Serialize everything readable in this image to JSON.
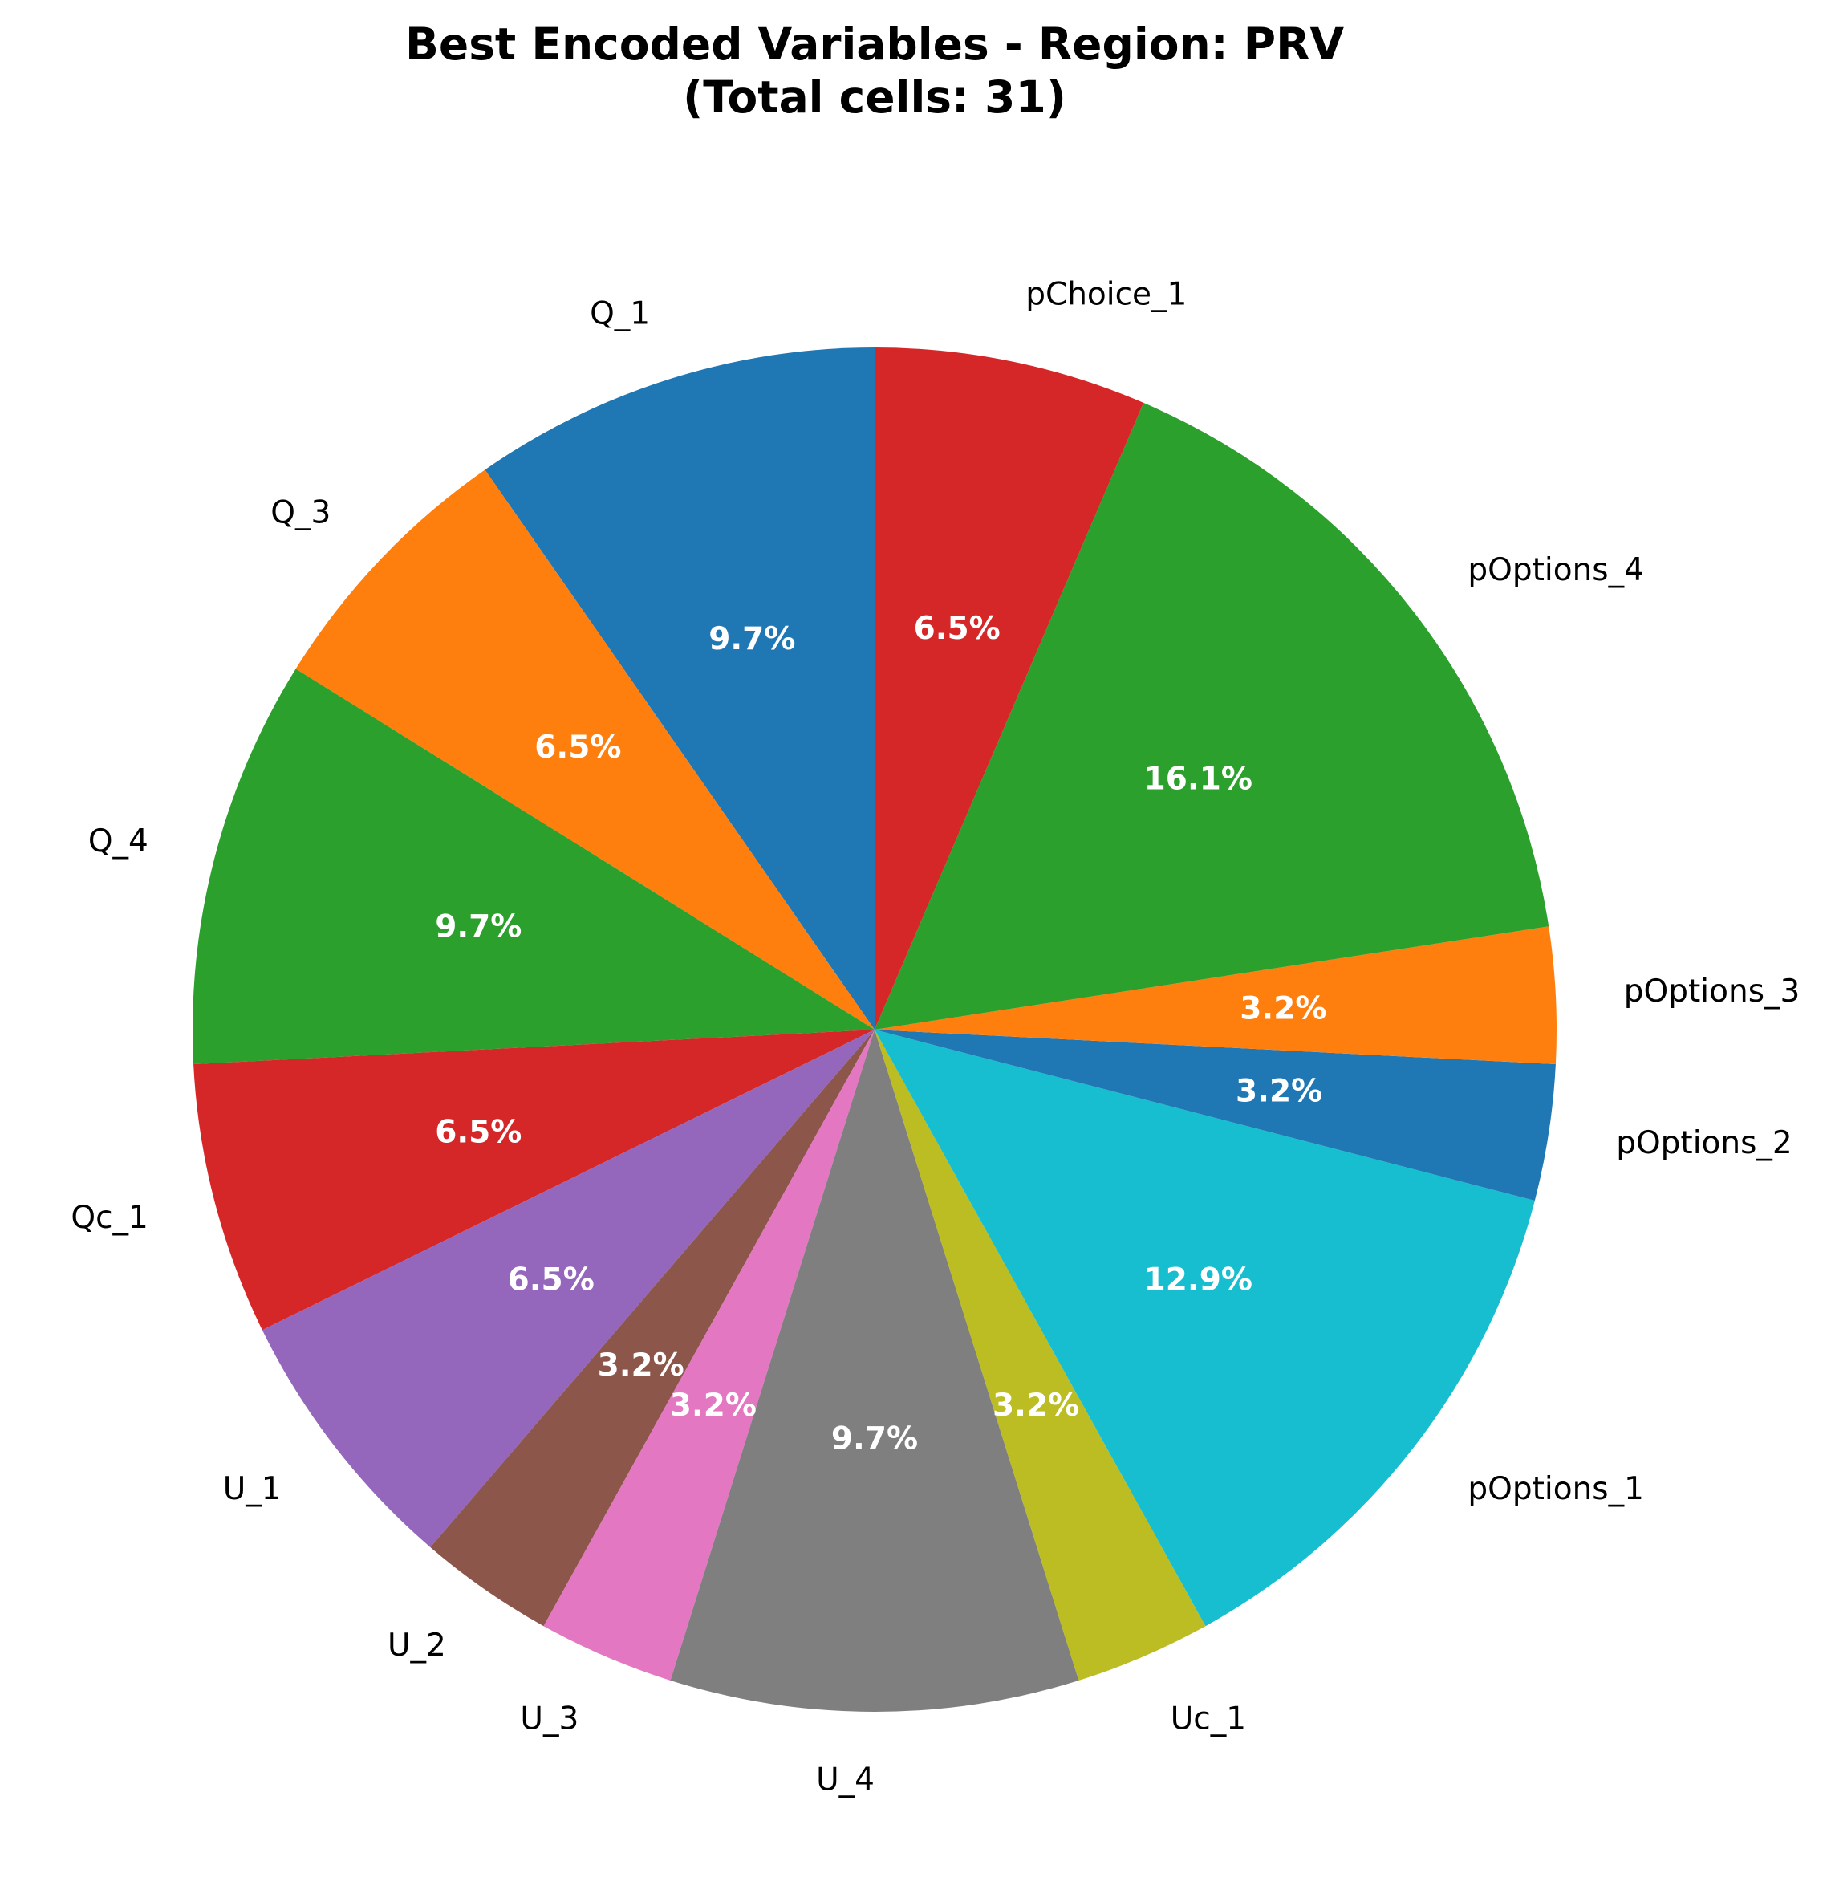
{
  "chart_data": {
    "type": "pie",
    "title": [
      "Best Encoded Variables - Region: PRV",
      "(Total cells: 31)"
    ],
    "counterclockwise": true,
    "start_angle_deg": 90,
    "slices": [
      {
        "label": "Q_1",
        "value": 3,
        "pct_label": "9.7%",
        "color": "#1f77b4"
      },
      {
        "label": "Q_3",
        "value": 2,
        "pct_label": "6.5%",
        "color": "#ff7f0e"
      },
      {
        "label": "Q_4",
        "value": 3,
        "pct_label": "9.7%",
        "color": "#2ca02c"
      },
      {
        "label": "Qc_1",
        "value": 2,
        "pct_label": "6.5%",
        "color": "#d62728"
      },
      {
        "label": "U_1",
        "value": 2,
        "pct_label": "6.5%",
        "color": "#9467bd"
      },
      {
        "label": "U_2",
        "value": 1,
        "pct_label": "3.2%",
        "color": "#8c564b"
      },
      {
        "label": "U_3",
        "value": 1,
        "pct_label": "3.2%",
        "color": "#e377c2"
      },
      {
        "label": "U_4",
        "value": 3,
        "pct_label": "9.7%",
        "color": "#7f7f7f"
      },
      {
        "label": "Uc_1",
        "value": 1,
        "pct_label": "3.2%",
        "color": "#bcbd22"
      },
      {
        "label": "pOptions_1",
        "value": 4,
        "pct_label": "12.9%",
        "color": "#17becf"
      },
      {
        "label": "pOptions_2",
        "value": 1,
        "pct_label": "3.2%",
        "color": "#1f77b4"
      },
      {
        "label": "pOptions_3",
        "value": 1,
        "pct_label": "3.2%",
        "color": "#ff7f0e"
      },
      {
        "label": "pOptions_4",
        "value": 5,
        "pct_label": "16.1%",
        "color": "#2ca02c"
      },
      {
        "label": "pChoice_1",
        "value": 2,
        "pct_label": "6.5%",
        "color": "#d62728"
      }
    ]
  }
}
